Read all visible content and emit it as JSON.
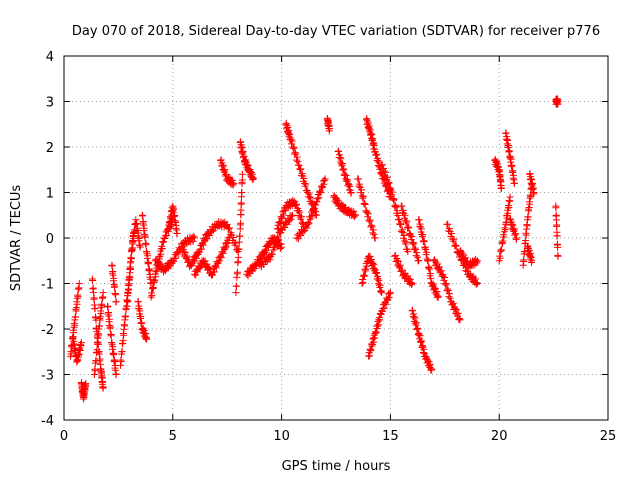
{
  "chart_data": {
    "type": "scatter",
    "title": "Day 070 of 2018, Sidereal Day-to-day VTEC variation (SDTVAR) for receiver p776",
    "xlabel": "GPS time / hours",
    "ylabel": "SDTVAR / TECUs",
    "xlim": [
      0,
      25
    ],
    "ylim": [
      -4,
      4
    ],
    "x_ticks": [
      0,
      5,
      10,
      15,
      20,
      25
    ],
    "y_ticks": [
      -4,
      -3,
      -2,
      -1,
      0,
      1,
      2,
      3,
      4
    ],
    "grid": true,
    "marker": "+",
    "color": "#ff0000",
    "series": [
      {
        "name": "SDTVAR",
        "segments": [
          {
            "x": [
              0.3,
              0.5,
              0.7
            ],
            "y": [
              -2.6,
              -1.8,
              -1.0
            ]
          },
          {
            "x": [
              0.4,
              0.6,
              0.8
            ],
            "y": [
              -2.2,
              -2.7,
              -2.3
            ]
          },
          {
            "x": [
              0.8,
              0.9,
              1.0
            ],
            "y": [
              -3.2,
              -3.5,
              -3.2
            ]
          },
          {
            "x": [
              1.3,
              1.5,
              1.7,
              1.8
            ],
            "y": [
              -0.9,
              -2.0,
              -2.9,
              -3.3
            ]
          },
          {
            "x": [
              1.4,
              1.6,
              1.8
            ],
            "y": [
              -3.0,
              -2.0,
              -1.2
            ]
          },
          {
            "x": [
              2.0,
              2.2,
              2.4
            ],
            "y": [
              -1.5,
              -2.3,
              -3.0
            ]
          },
          {
            "x": [
              2.2,
              2.4
            ],
            "y": [
              -0.6,
              -1.4
            ]
          },
          {
            "x": [
              2.6,
              2.8,
              3.0,
              3.2
            ],
            "y": [
              -2.8,
              -1.8,
              -0.9,
              0.1
            ]
          },
          {
            "x": [
              2.9,
              3.1,
              3.3,
              3.5
            ],
            "y": [
              -1.5,
              -0.3,
              0.4,
              -0.2
            ]
          },
          {
            "x": [
              3.4,
              3.6,
              3.8
            ],
            "y": [
              -1.4,
              -2.0,
              -2.2
            ]
          },
          {
            "x": [
              3.6,
              3.8,
              4.0
            ],
            "y": [
              0.5,
              -0.3,
              -1.0
            ]
          },
          {
            "x": [
              4.0,
              4.3,
              4.6,
              5.0
            ],
            "y": [
              -1.3,
              -0.6,
              0.0,
              0.4
            ]
          },
          {
            "x": [
              4.2,
              4.6,
              5.0,
              5.5,
              6.0
            ],
            "y": [
              -0.5,
              -0.7,
              -0.5,
              -0.1,
              0.0
            ]
          },
          {
            "x": [
              4.8,
              5.0,
              5.2
            ],
            "y": [
              0.2,
              0.7,
              0.1
            ]
          },
          {
            "x": [
              5.4,
              5.8,
              6.2,
              6.6
            ],
            "y": [
              -0.2,
              -0.6,
              -0.3,
              0.1
            ]
          },
          {
            "x": [
              6.0,
              6.4,
              6.8,
              7.2,
              7.6
            ],
            "y": [
              -0.8,
              -0.5,
              -0.8,
              -0.4,
              0.0
            ]
          },
          {
            "x": [
              6.5,
              7.0,
              7.5,
              8.0
            ],
            "y": [
              0.0,
              0.3,
              0.3,
              -0.3
            ]
          },
          {
            "x": [
              7.2,
              7.5,
              7.8
            ],
            "y": [
              1.7,
              1.3,
              1.2
            ]
          },
          {
            "x": [
              7.9,
              8.1,
              8.2
            ],
            "y": [
              -1.2,
              0.2,
              1.4
            ]
          },
          {
            "x": [
              8.1,
              8.3,
              8.5,
              8.7
            ],
            "y": [
              2.1,
              1.7,
              1.5,
              1.3
            ]
          },
          {
            "x": [
              8.4,
              8.8,
              9.2,
              9.6,
              10.0
            ],
            "y": [
              -0.8,
              -0.6,
              -0.3,
              0.0,
              -0.2
            ]
          },
          {
            "x": [
              9.0,
              9.5,
              10.0,
              10.5
            ],
            "y": [
              -0.6,
              -0.4,
              0.2,
              0.5
            ]
          },
          {
            "x": [
              9.8,
              10.2,
              10.6,
              11.0
            ],
            "y": [
              0.2,
              0.7,
              0.8,
              0.3
            ]
          },
          {
            "x": [
              10.2,
              10.4,
              10.8,
              11.2,
              11.6
            ],
            "y": [
              2.5,
              2.2,
              1.6,
              1.0,
              0.5
            ]
          },
          {
            "x": [
              10.7,
              11.2,
              11.6,
              12.0
            ],
            "y": [
              0.0,
              0.3,
              0.8,
              1.3
            ]
          },
          {
            "x": [
              12.1,
              12.2
            ],
            "y": [
              2.6,
              2.4
            ]
          },
          {
            "x": [
              12.4,
              12.7,
              13.0,
              13.4
            ],
            "y": [
              0.9,
              0.7,
              0.6,
              0.5
            ]
          },
          {
            "x": [
              12.6,
              12.9,
              13.2
            ],
            "y": [
              1.9,
              1.4,
              1.0
            ]
          },
          {
            "x": [
              13.5,
              13.9,
              14.3
            ],
            "y": [
              1.3,
              0.6,
              0.0
            ]
          },
          {
            "x": [
              13.7,
              14.0,
              14.3,
              14.6
            ],
            "y": [
              -1.0,
              -0.4,
              -0.7,
              -1.2
            ]
          },
          {
            "x": [
              13.9,
              14.1,
              14.3,
              14.6,
              15.0
            ],
            "y": [
              2.6,
              2.3,
              1.9,
              1.4,
              0.9
            ]
          },
          {
            "x": [
              14.0,
              14.3,
              14.6,
              15.0
            ],
            "y": [
              -2.6,
              -2.1,
              -1.6,
              -1.2
            ]
          },
          {
            "x": [
              14.6,
              15.0,
              15.4,
              15.8
            ],
            "y": [
              1.6,
              1.1,
              0.4,
              -0.3
            ]
          },
          {
            "x": [
              15.2,
              15.6,
              16.0
            ],
            "y": [
              -0.4,
              -0.8,
              -1.0
            ]
          },
          {
            "x": [
              15.5,
              15.9,
              16.3
            ],
            "y": [
              0.7,
              0.1,
              -0.5
            ]
          },
          {
            "x": [
              16.0,
              16.3,
              16.6,
              16.9
            ],
            "y": [
              -1.6,
              -2.1,
              -2.6,
              -2.9
            ]
          },
          {
            "x": [
              16.3,
              16.6,
              16.9,
              17.2
            ],
            "y": [
              0.4,
              -0.2,
              -1.0,
              -1.3
            ]
          },
          {
            "x": [
              17.0,
              17.4,
              17.8,
              18.2
            ],
            "y": [
              -0.5,
              -0.8,
              -1.4,
              -1.8
            ]
          },
          {
            "x": [
              17.6,
              18.1,
              18.6,
              19.0
            ],
            "y": [
              0.3,
              -0.3,
              -0.8,
              -1.0
            ]
          },
          {
            "x": [
              18.2,
              18.6,
              19.0
            ],
            "y": [
              -0.3,
              -0.6,
              -0.5
            ]
          },
          {
            "x": [
              19.8,
              20.0,
              20.1
            ],
            "y": [
              1.7,
              1.5,
              1.1
            ]
          },
          {
            "x": [
              20.0,
              20.3,
              20.5
            ],
            "y": [
              -0.5,
              0.3,
              0.9
            ]
          },
          {
            "x": [
              20.3,
              20.5,
              20.7
            ],
            "y": [
              2.3,
              1.8,
              1.2
            ]
          },
          {
            "x": [
              20.5,
              20.8
            ],
            "y": [
              0.4,
              0.0
            ]
          },
          {
            "x": [
              21.1,
              21.3,
              21.5
            ],
            "y": [
              -0.6,
              0.4,
              1.2
            ]
          },
          {
            "x": [
              21.4,
              21.6
            ],
            "y": [
              1.4,
              1.0
            ]
          },
          {
            "x": [
              21.3,
              21.5
            ],
            "y": [
              -0.2,
              -0.5
            ]
          },
          {
            "x": [
              22.6,
              22.7
            ],
            "y": [
              3.0,
              3.0
            ]
          },
          {
            "x": [
              22.6,
              22.7
            ],
            "y": [
              0.7,
              -0.4
            ]
          }
        ]
      }
    ]
  }
}
